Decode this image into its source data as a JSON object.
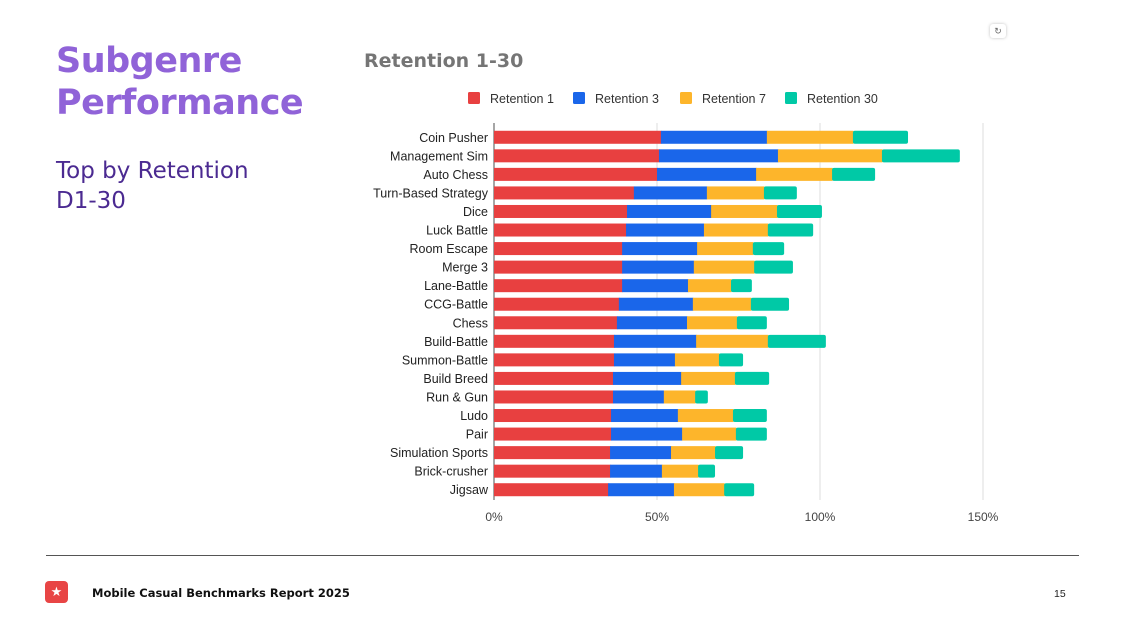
{
  "slide": {
    "title_line1": "Subgenre",
    "title_line2": "Performance",
    "subtitle_line1": "Top by Retention",
    "subtitle_line2": "D1-30",
    "refresh_icon": "refresh-icon"
  },
  "footer": {
    "logo_icon": "star-icon",
    "report_name": "Mobile Casual Benchmarks Report 2025",
    "page_number": "15"
  },
  "chart_data": {
    "type": "bar",
    "orientation": "horizontal",
    "stacked": true,
    "title": "Retention 1-30",
    "xlabel": "",
    "ylabel": "",
    "xlim": [
      0,
      150
    ],
    "x_ticks": [
      "0%",
      "50%",
      "100%",
      "150%"
    ],
    "x_tick_values": [
      0,
      50,
      100,
      150
    ],
    "grid": true,
    "legend_position": "top",
    "categories": [
      "Coin Pusher",
      "Management Sim",
      "Auto Chess",
      "Turn-Based Strategy",
      "Dice",
      "Luck Battle",
      "Room Escape",
      "Merge 3",
      "Lane-Battle",
      "CCG-Battle",
      "Chess",
      "Build-Battle",
      "Summon-Battle",
      "Build Breed",
      "Run & Gun",
      "Ludo",
      "Pair",
      "Simulation Sports",
      "Brick-crusher",
      "Jigsaw"
    ],
    "series": [
      {
        "name": "Retention 1",
        "color": "#e84040",
        "values": [
          51.2,
          50.6,
          50.0,
          42.9,
          40.8,
          40.5,
          39.3,
          39.3,
          39.3,
          38.3,
          37.7,
          36.8,
          36.8,
          36.5,
          36.5,
          35.9,
          35.9,
          35.6,
          35.6,
          35.0
        ]
      },
      {
        "name": "Retention 3",
        "color": "#1a66ea",
        "values": [
          32.5,
          36.5,
          30.4,
          22.4,
          25.8,
          23.9,
          23.0,
          22.0,
          20.2,
          22.7,
          21.5,
          25.2,
          18.7,
          20.9,
          15.6,
          20.5,
          21.8,
          18.7,
          15.9,
          20.2
        ]
      },
      {
        "name": "Retention 7",
        "color": "#fdb52b",
        "values": [
          26.4,
          31.9,
          23.3,
          17.5,
          20.2,
          19.6,
          17.1,
          18.5,
          13.2,
          17.8,
          15.3,
          22.0,
          13.5,
          16.5,
          9.6,
          16.9,
          16.5,
          13.5,
          11.1,
          15.4
        ]
      },
      {
        "name": "Retention 30",
        "color": "#00c9a6",
        "values": [
          16.9,
          23.9,
          13.2,
          10.1,
          13.8,
          13.9,
          9.6,
          11.9,
          6.4,
          11.7,
          9.2,
          17.8,
          7.4,
          10.5,
          3.9,
          10.4,
          9.5,
          8.6,
          5.2,
          9.2
        ]
      }
    ]
  }
}
